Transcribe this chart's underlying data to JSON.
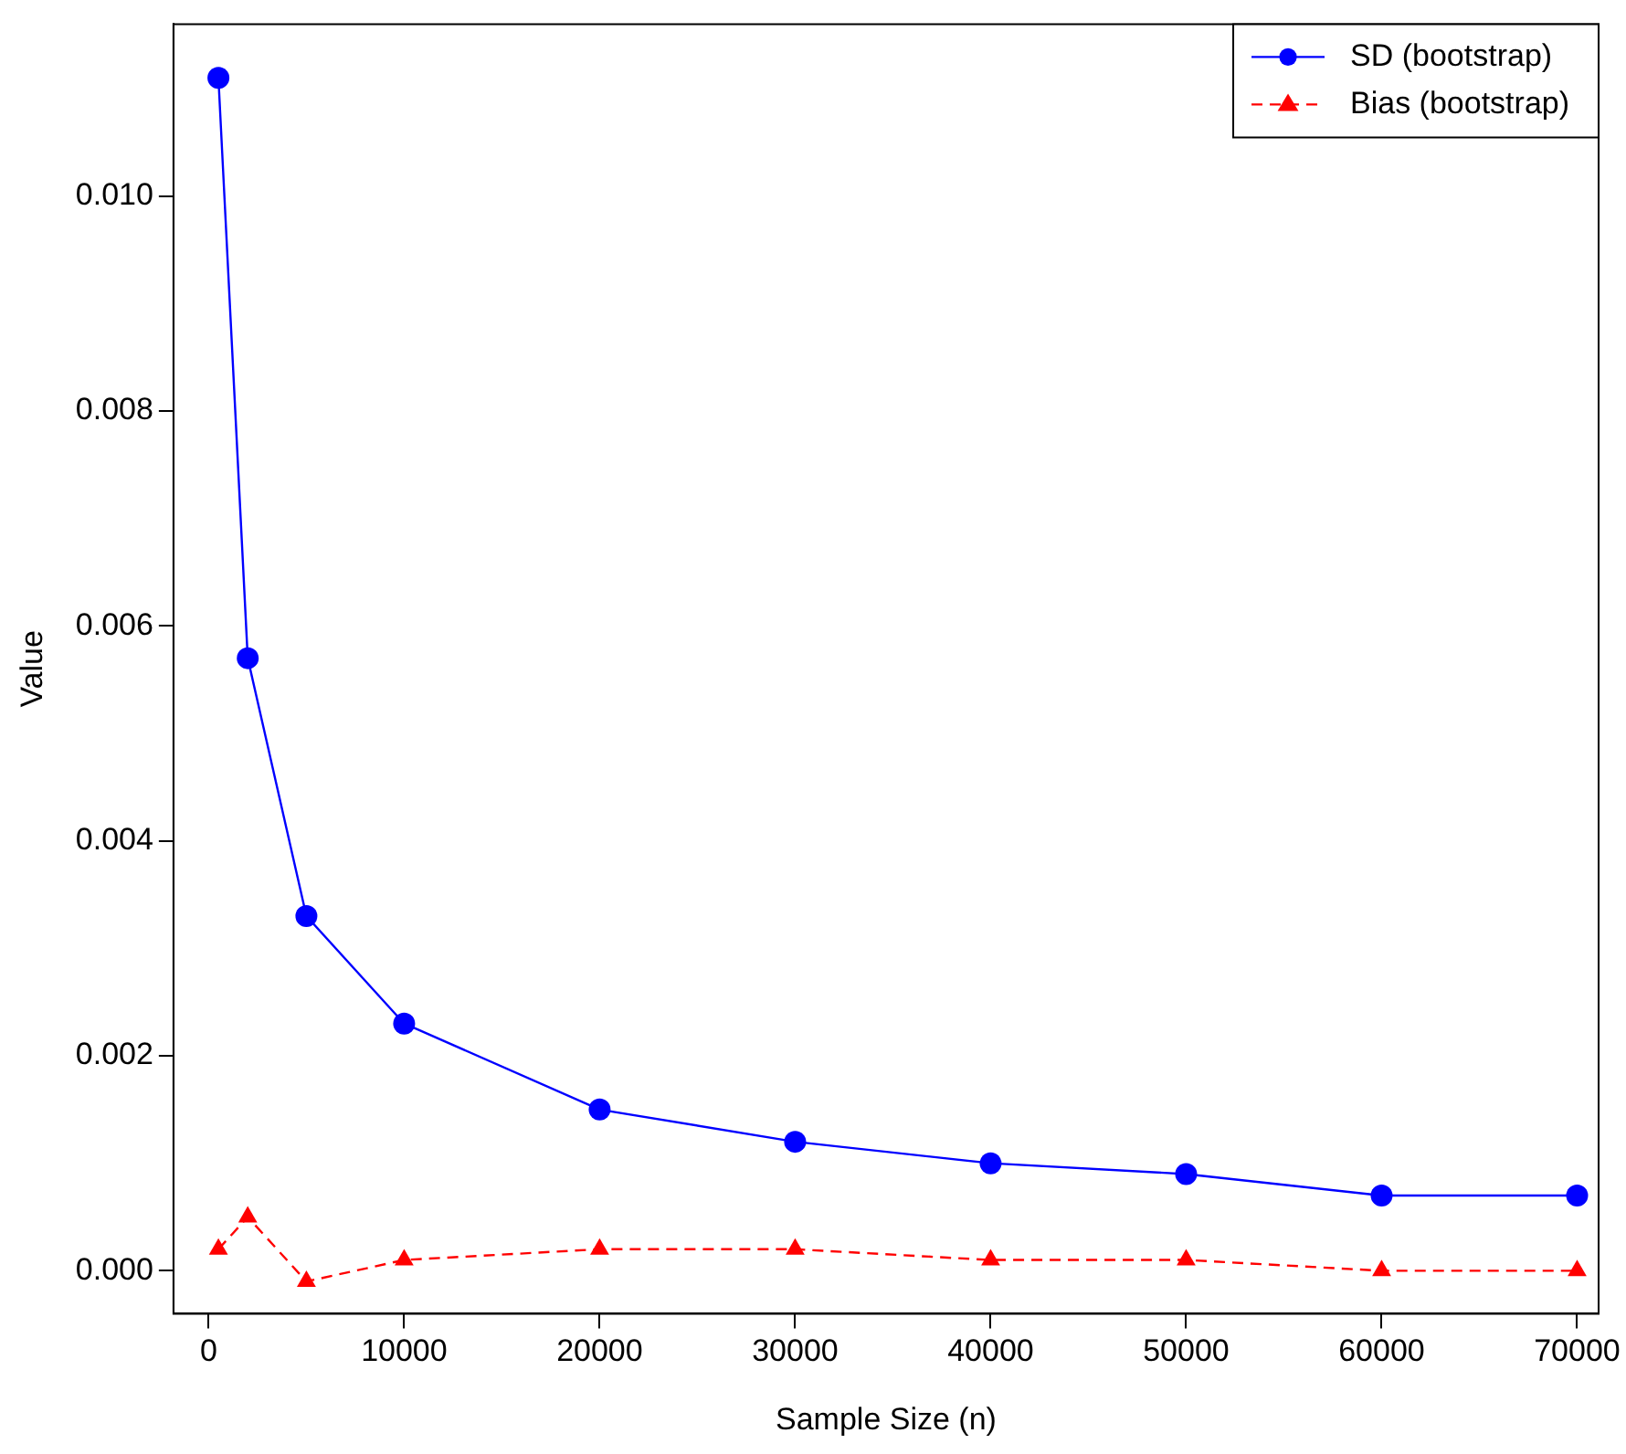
{
  "chart_data": {
    "type": "line",
    "xlabel": "Sample Size (n)",
    "ylabel": "Value",
    "x": [
      500,
      2000,
      5000,
      10000,
      20000,
      30000,
      40000,
      50000,
      60000,
      70000
    ],
    "series": [
      {
        "name": "SD (bootstrap)",
        "color": "#0000ff",
        "marker": "circle",
        "line_style": "solid",
        "values": [
          0.0111,
          0.0057,
          0.0033,
          0.0023,
          0.0015,
          0.0012,
          0.001,
          0.0009,
          0.0007,
          0.0007
        ]
      },
      {
        "name": "Bias (bootstrap)",
        "color": "#ff0000",
        "marker": "triangle",
        "line_style": "dashed",
        "values": [
          0.0002,
          0.0005,
          -0.0001,
          0.0001,
          0.0002,
          0.0002,
          0.0001,
          0.0001,
          0,
          0
        ]
      }
    ],
    "xlim": [
      -1800,
      71100
    ],
    "xticks": [
      0,
      10000,
      20000,
      30000,
      40000,
      50000,
      60000,
      70000
    ],
    "ylim": [
      -0.0004,
      0.0116
    ],
    "yticks": [
      {
        "value": 0,
        "label": "0.000"
      },
      {
        "value": 0.002,
        "label": "0.002"
      },
      {
        "value": 0.004,
        "label": "0.004"
      },
      {
        "value": 0.006,
        "label": "0.006"
      },
      {
        "value": 0.008,
        "label": "0.008"
      },
      {
        "value": 0.01,
        "label": "0.010"
      }
    ],
    "grid": false,
    "legend": "top right"
  }
}
